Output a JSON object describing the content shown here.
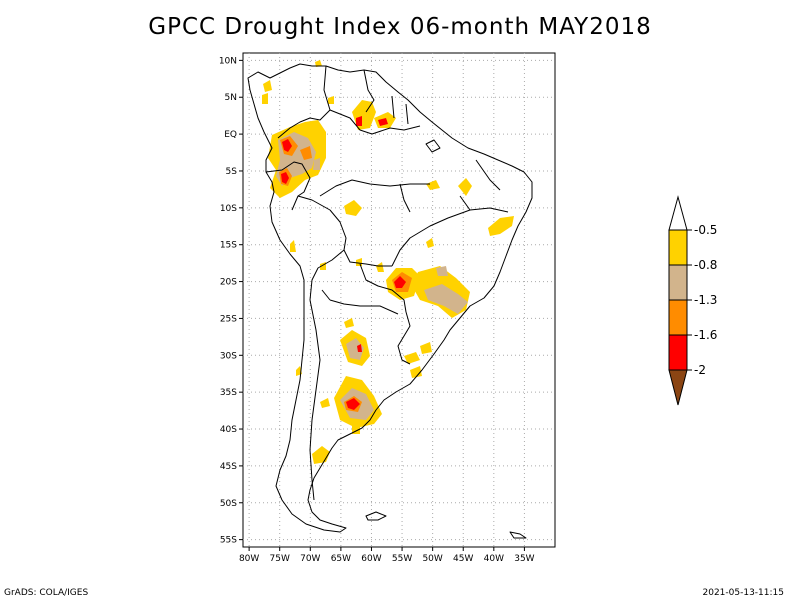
{
  "title": "GPCC Drought Index 06-month MAY2018",
  "footer": {
    "left": "GrADS: COLA/IGES",
    "right": "2021-05-13-11:15"
  },
  "map": {
    "lon_range": [
      -81,
      -30
    ],
    "lat_range": [
      -56,
      11
    ],
    "lon_ticks": [
      "80W",
      "75W",
      "70W",
      "65W",
      "60W",
      "55W",
      "50W",
      "45W",
      "40W",
      "35W"
    ],
    "lat_ticks": [
      "10N",
      "5N",
      "EQ",
      "5S",
      "10S",
      "15S",
      "20S",
      "25S",
      "30S",
      "35S",
      "40S",
      "45S",
      "50S",
      "55S"
    ],
    "gridlines": "dotted"
  },
  "colorbar": {
    "labels": [
      "-0.5",
      "-0.8",
      "-1.3",
      "-1.6",
      "-2"
    ],
    "colors": {
      "white": "#ffffff",
      "yellow": "#ffd200",
      "tan": "#d2b48c",
      "orange": "#ff8c00",
      "red": "#ff0000",
      "brown": "#8b4513"
    }
  },
  "colors": {
    "coast": "#000000",
    "grid": "#aaaaaa"
  }
}
